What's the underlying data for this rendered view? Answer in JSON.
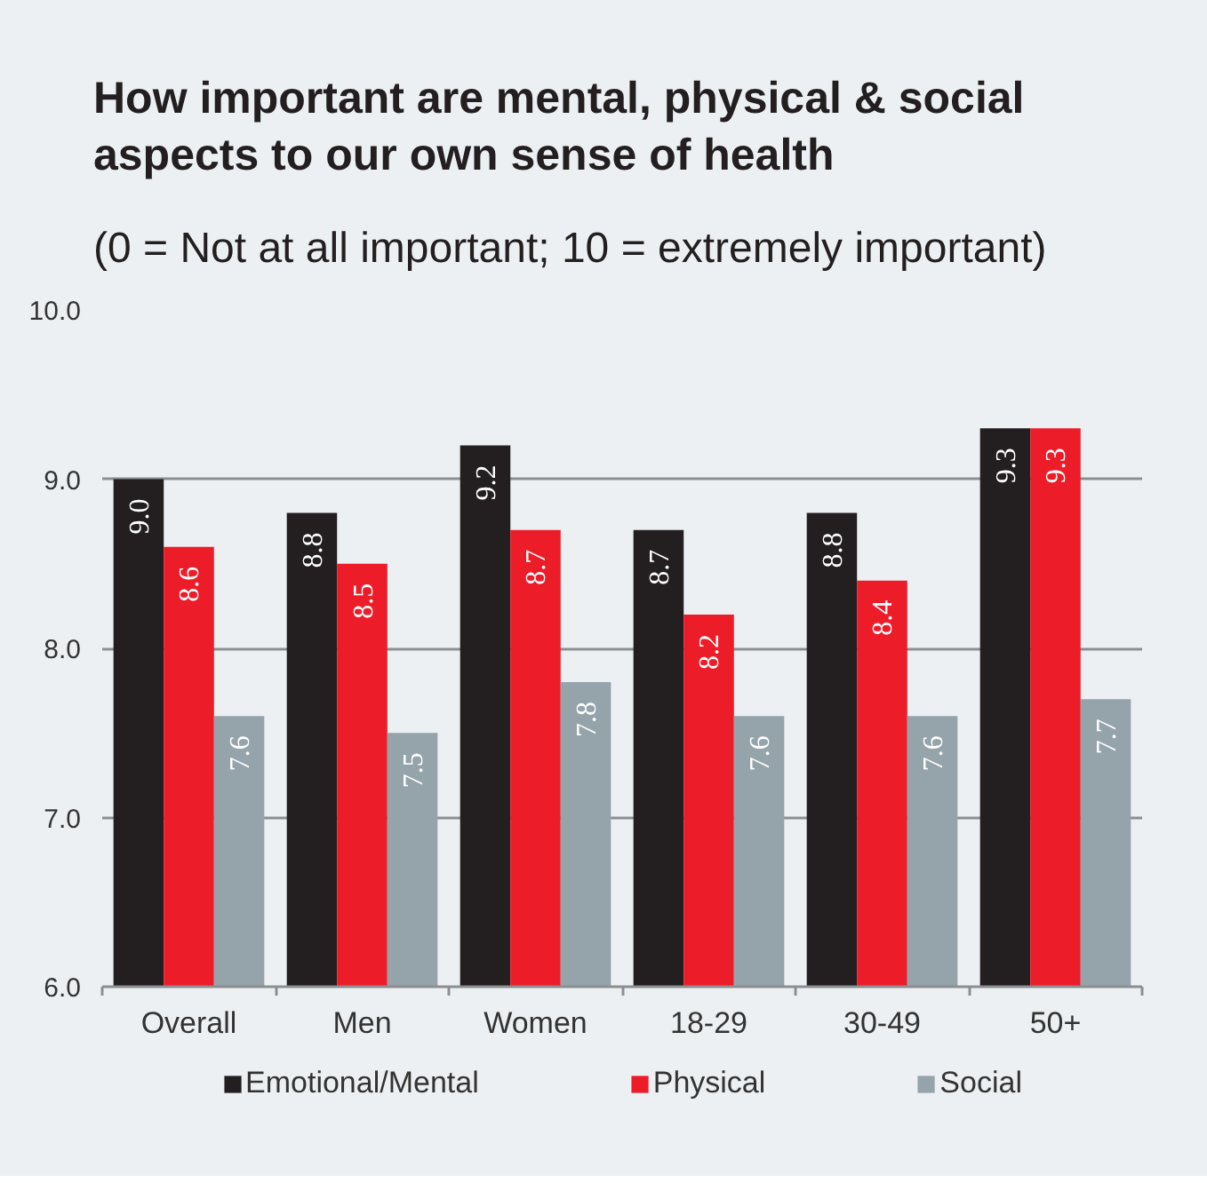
{
  "chart_data": {
    "type": "bar",
    "title": "How important are mental, physical & social aspects to our own sense of health",
    "subtitle": "(0 = Not at all important; 10 = extremely important)",
    "categories": [
      "Overall",
      "Men",
      "Women",
      "18-29",
      "30-49",
      "50+"
    ],
    "series": [
      {
        "name": "Emotional/Mental",
        "color": "#231f20",
        "values": [
          9.0,
          8.8,
          9.2,
          8.7,
          8.8,
          9.3
        ],
        "value_labels": [
          "9.0",
          "8.8",
          "9.2",
          "8.7",
          "8.8",
          "9.3"
        ]
      },
      {
        "name": "Physical",
        "color": "#ed1c29",
        "values": [
          8.6,
          8.5,
          8.7,
          8.2,
          8.4,
          9.3
        ],
        "value_labels": [
          "8.6",
          "8.5",
          "8.7",
          "8.2",
          "8.4",
          "9.3"
        ]
      },
      {
        "name": "Social",
        "color": "#95a3aa",
        "values": [
          7.6,
          7.5,
          7.8,
          7.6,
          7.6,
          7.7
        ],
        "value_labels": [
          "7.6",
          "7.5",
          "7.8",
          "7.6",
          "7.6",
          "7.7"
        ]
      }
    ],
    "ylim": [
      6,
      10
    ],
    "yticks": [
      {
        "value": 6,
        "label": "6.0"
      },
      {
        "value": 7,
        "label": "7.0"
      },
      {
        "value": 8,
        "label": "8.0"
      },
      {
        "value": 9,
        "label": "9.0"
      },
      {
        "value": 10,
        "label": "10.0"
      }
    ],
    "grid": "y",
    "legend": "bottom"
  }
}
